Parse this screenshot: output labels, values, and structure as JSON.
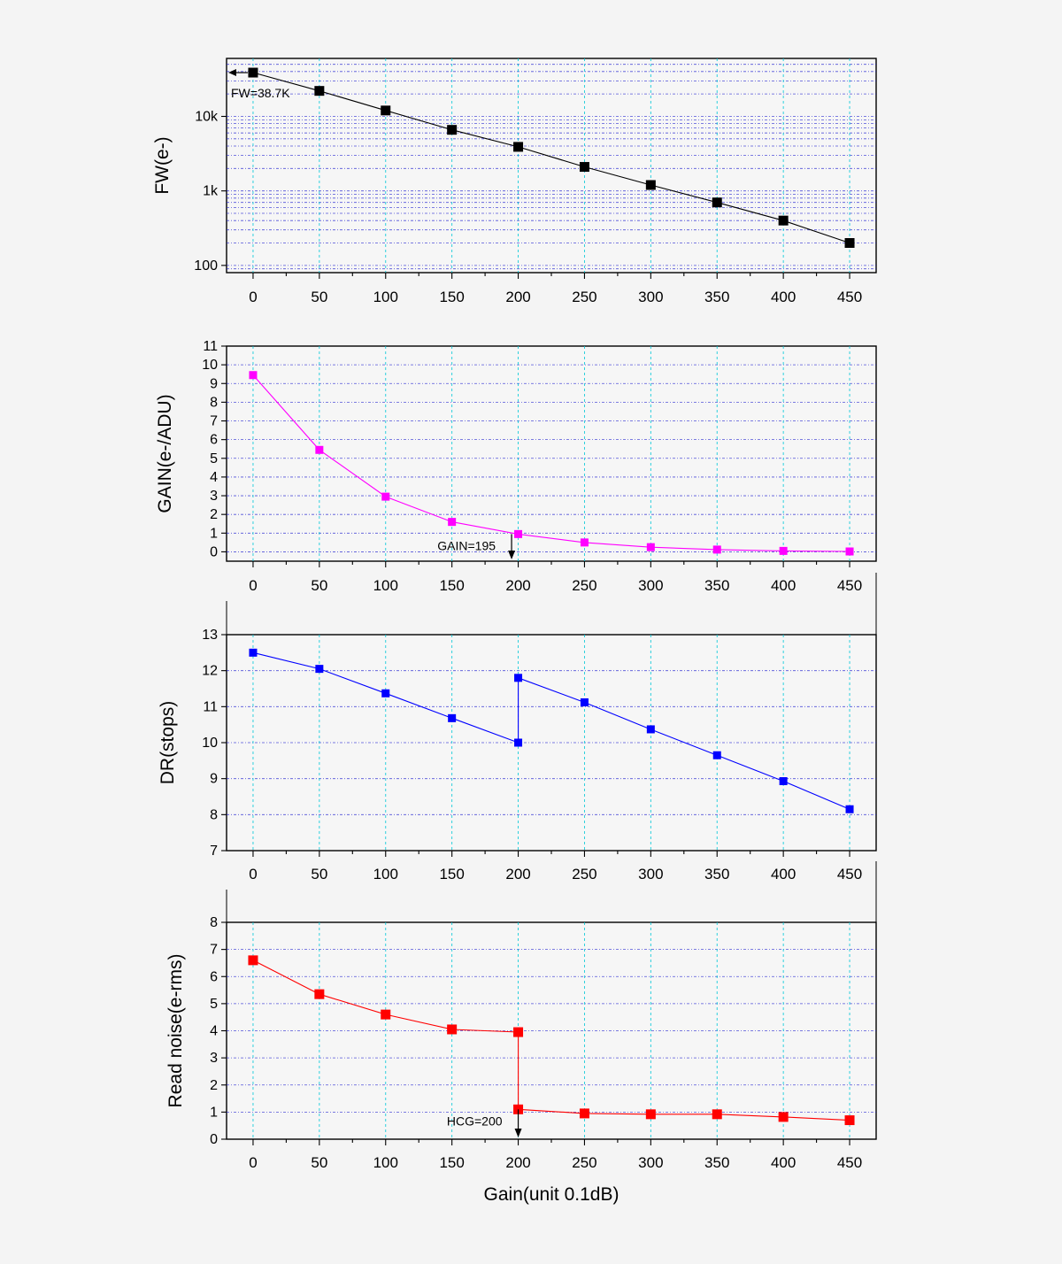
{
  "chart_data": [
    {
      "type": "line",
      "ylabel": "FW(e-)",
      "yscale": "log",
      "ylim": [
        80,
        60000
      ],
      "y_ticks": [
        100,
        1000,
        10000
      ],
      "y_tick_labels": [
        "100",
        "1k",
        "10k"
      ],
      "x": [
        0,
        50,
        100,
        150,
        200,
        250,
        300,
        350,
        400,
        450
      ],
      "x_ticks": [
        0,
        50,
        100,
        150,
        200,
        250,
        300,
        350,
        400,
        450
      ],
      "xlim": [
        -20,
        470
      ],
      "series": [
        {
          "color": "#000000",
          "values": [
            38700,
            22000,
            12000,
            6600,
            3900,
            2100,
            1200,
            700,
            400,
            200
          ]
        }
      ],
      "annotations": [
        {
          "text": "FW=38.7K",
          "x": 0,
          "y": 38700,
          "arrow": "left"
        }
      ],
      "grid": true
    },
    {
      "type": "line",
      "ylabel": "GAIN(e-/ADU)",
      "ylim": [
        -0.5,
        11
      ],
      "y_ticks": [
        0,
        1,
        2,
        3,
        4,
        5,
        6,
        7,
        8,
        9,
        10,
        11
      ],
      "x": [
        0,
        50,
        100,
        150,
        200,
        250,
        300,
        350,
        400,
        450
      ],
      "x_ticks": [
        0,
        50,
        100,
        150,
        200,
        250,
        300,
        350,
        400,
        450
      ],
      "xlim": [
        -20,
        470
      ],
      "series": [
        {
          "color": "#ff00ff",
          "values": [
            9.45,
            5.45,
            2.95,
            1.6,
            0.95,
            0.5,
            0.25,
            0.12,
            0.05,
            0.02
          ]
        }
      ],
      "annotations": [
        {
          "text": "GAIN=195",
          "x": 195,
          "y": 0.95,
          "arrow": "down"
        }
      ],
      "grid": true
    },
    {
      "type": "line",
      "ylabel": "DR(stops)",
      "ylim": [
        7,
        13
      ],
      "y_ticks": [
        7,
        8,
        9,
        10,
        11,
        12,
        13
      ],
      "x": [
        0,
        50,
        100,
        150,
        200,
        200,
        250,
        300,
        350,
        400,
        450
      ],
      "x_ticks": [
        0,
        50,
        100,
        150,
        200,
        250,
        300,
        350,
        400,
        450
      ],
      "xlim": [
        -20,
        470
      ],
      "series": [
        {
          "color": "#0000ff",
          "values": [
            12.5,
            12.05,
            11.37,
            10.68,
            10.0,
            11.8,
            11.12,
            10.37,
            9.65,
            8.93,
            8.15
          ]
        }
      ],
      "grid": true
    },
    {
      "type": "line",
      "ylabel": "Read noise(e-rms)",
      "xlabel": "Gain(unit 0.1dB)",
      "ylim": [
        0,
        8
      ],
      "y_ticks": [
        0,
        1,
        2,
        3,
        4,
        5,
        6,
        7,
        8
      ],
      "x": [
        0,
        50,
        100,
        150,
        200,
        200,
        250,
        300,
        350,
        400,
        450
      ],
      "x_ticks": [
        0,
        50,
        100,
        150,
        200,
        250,
        300,
        350,
        400,
        450
      ],
      "xlim": [
        -20,
        470
      ],
      "series": [
        {
          "color": "#ff0000",
          "values": [
            6.6,
            5.35,
            4.6,
            4.05,
            3.95,
            1.1,
            0.95,
            0.92,
            0.92,
            0.82,
            0.7
          ]
        }
      ],
      "annotations": [
        {
          "text": "HCG=200",
          "x": 200,
          "y": 1.1,
          "arrow": "down"
        }
      ],
      "grid": true
    }
  ]
}
